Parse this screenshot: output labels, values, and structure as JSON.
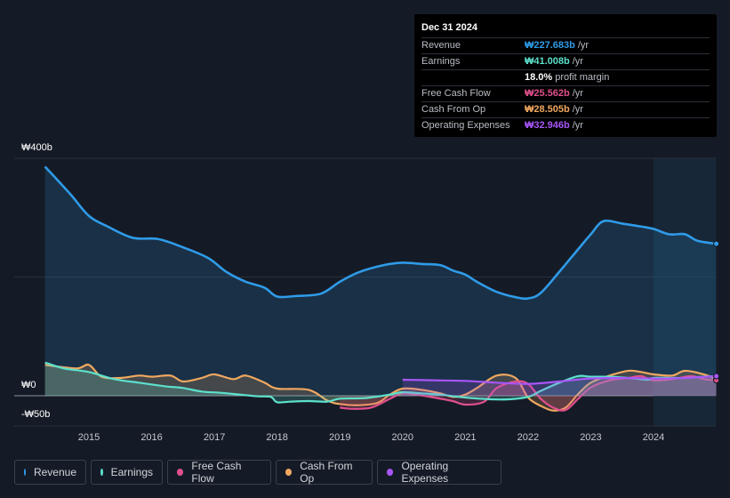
{
  "tooltip": {
    "date": "Dec 31 2024",
    "rows": [
      {
        "label": "Revenue",
        "value": "₩227.683b",
        "unit": "/yr",
        "color": "#2f9be8"
      },
      {
        "label": "Earnings",
        "value": "₩41.008b",
        "unit": "/yr",
        "color": "#5de0cc"
      },
      {
        "label": "",
        "value": "18.0%",
        "unit": "profit margin",
        "color": "#ffffff"
      },
      {
        "label": "Free Cash Flow",
        "value": "₩25.562b",
        "unit": "/yr",
        "color": "#e0508c"
      },
      {
        "label": "Cash From Op",
        "value": "₩28.505b",
        "unit": "/yr",
        "color": "#f0a860"
      },
      {
        "label": "Operating Expenses",
        "value": "₩32.946b",
        "unit": "/yr",
        "color": "#a855f7"
      }
    ]
  },
  "legend": [
    {
      "label": "Revenue",
      "color": "#2f9be8"
    },
    {
      "label": "Earnings",
      "color": "#5de0cc"
    },
    {
      "label": "Free Cash Flow",
      "color": "#e0508c"
    },
    {
      "label": "Cash From Op",
      "color": "#f0a860"
    },
    {
      "label": "Operating Expenses",
      "color": "#a855f7"
    }
  ],
  "chart_data": {
    "type": "area",
    "title": "",
    "xlabel": "",
    "ylabel": "",
    "ylim": [
      -50,
      400
    ],
    "xlim": [
      2014.3,
      2025.0
    ],
    "y_tick_labels": [
      "₩400b",
      "₩0",
      "-₩50b"
    ],
    "y_ticks": [
      400,
      0,
      -50
    ],
    "x_tick_labels": [
      "2015",
      "2016",
      "2017",
      "2018",
      "2019",
      "2020",
      "2021",
      "2022",
      "2023",
      "2024"
    ],
    "x_ticks": [
      2015,
      2016,
      2017,
      2018,
      2019,
      2020,
      2021,
      2022,
      2023,
      2024
    ],
    "highlight_from": 2024.0,
    "series": [
      {
        "name": "Revenue",
        "color": "#2f9be8",
        "x": [
          2014.3,
          2014.7,
          2015.0,
          2015.3,
          2015.7,
          2016.1,
          2016.5,
          2016.9,
          2017.2,
          2017.5,
          2017.8,
          2018.0,
          2018.3,
          2018.7,
          2019.0,
          2019.3,
          2019.7,
          2020.0,
          2020.3,
          2020.6,
          2020.8,
          2021.0,
          2021.2,
          2021.5,
          2021.8,
          2022.0,
          2022.2,
          2022.5,
          2022.8,
          2023.0,
          2023.2,
          2023.5,
          2023.8,
          2024.0,
          2024.25,
          2024.5,
          2024.7,
          2025.0
        ],
        "y": [
          386,
          340,
          303,
          285,
          266,
          264,
          250,
          232,
          208,
          192,
          182,
          167,
          168,
          172,
          192,
          208,
          220,
          224,
          222,
          220,
          211,
          204,
          191,
          175,
          166,
          164,
          173,
          209,
          247,
          272,
          294,
          290,
          285,
          281,
          272,
          272,
          261,
          256
        ]
      },
      {
        "name": "Earnings",
        "color": "#5de0cc",
        "x": [
          2014.3,
          2014.6,
          2015.0,
          2015.4,
          2015.8,
          2016.2,
          2016.5,
          2016.8,
          2017.1,
          2017.4,
          2017.7,
          2017.9,
          2018.0,
          2018.2,
          2018.5,
          2018.8,
          2019.0,
          2019.4,
          2019.8,
          2020.0,
          2020.3,
          2020.6,
          2020.9,
          2021.1,
          2021.4,
          2021.7,
          2022.0,
          2022.2,
          2022.5,
          2022.8,
          2023.0,
          2023.3,
          2023.6,
          2023.9,
          2024.0,
          2024.3,
          2024.5,
          2024.8,
          2025.0
        ],
        "y": [
          56,
          46,
          40,
          28,
          22,
          16,
          13,
          7,
          5,
          2,
          -1,
          -2,
          -11,
          -10,
          -9,
          -10,
          -5,
          -4,
          2,
          6,
          4,
          2,
          -2,
          -4,
          -6,
          -6,
          -2,
          8,
          22,
          33,
          32,
          32,
          30,
          27,
          30,
          30,
          30,
          32,
          33
        ]
      },
      {
        "name": "Free Cash Flow",
        "color": "#e0508c",
        "x": [
          2019.0,
          2019.2,
          2019.5,
          2019.8,
          2020.0,
          2020.2,
          2020.5,
          2020.8,
          2021.0,
          2021.3,
          2021.5,
          2021.8,
          2022.0,
          2022.2,
          2022.4,
          2022.6,
          2022.8,
          2023.0,
          2023.3,
          2023.6,
          2023.8,
          2024.0,
          2024.3,
          2024.6,
          2024.8,
          2025.0
        ],
        "y": [
          -20,
          -22,
          -20,
          -5,
          4,
          2,
          -3,
          -9,
          -15,
          -10,
          13,
          24,
          20,
          -5,
          -20,
          -24,
          -5,
          14,
          26,
          30,
          33,
          26,
          28,
          33,
          28,
          26
        ]
      },
      {
        "name": "Cash From Op",
        "color": "#f0a860",
        "x": [
          2014.3,
          2014.8,
          2015.0,
          2015.2,
          2015.5,
          2015.8,
          2016.0,
          2016.3,
          2016.5,
          2016.8,
          2017.0,
          2017.3,
          2017.5,
          2017.8,
          2018.0,
          2018.5,
          2018.8,
          2019.0,
          2019.3,
          2019.6,
          2019.8,
          2020.0,
          2020.3,
          2020.6,
          2020.8,
          2021.0,
          2021.2,
          2021.5,
          2021.8,
          2022.0,
          2022.2,
          2022.4,
          2022.6,
          2022.8,
          2023.0,
          2023.3,
          2023.6,
          2023.8,
          2024.0,
          2024.3,
          2024.5,
          2024.8,
          2025.0
        ],
        "y": [
          52,
          46,
          52,
          32,
          30,
          34,
          32,
          34,
          24,
          30,
          36,
          28,
          34,
          22,
          12,
          10,
          -8,
          -14,
          -16,
          -12,
          2,
          12,
          10,
          4,
          -2,
          2,
          14,
          34,
          30,
          -3,
          -17,
          -25,
          -20,
          3,
          22,
          34,
          42,
          40,
          36,
          34,
          42,
          36,
          28
        ]
      },
      {
        "name": "Operating Expenses",
        "color": "#a855f7",
        "x": [
          2020.0,
          2020.5,
          2021.0,
          2021.5,
          2022.0,
          2022.5,
          2023.0,
          2023.5,
          2024.0,
          2024.5,
          2025.0
        ],
        "y": [
          27,
          26,
          25,
          22,
          20,
          24,
          29,
          30,
          29,
          30,
          33
        ]
      }
    ]
  }
}
